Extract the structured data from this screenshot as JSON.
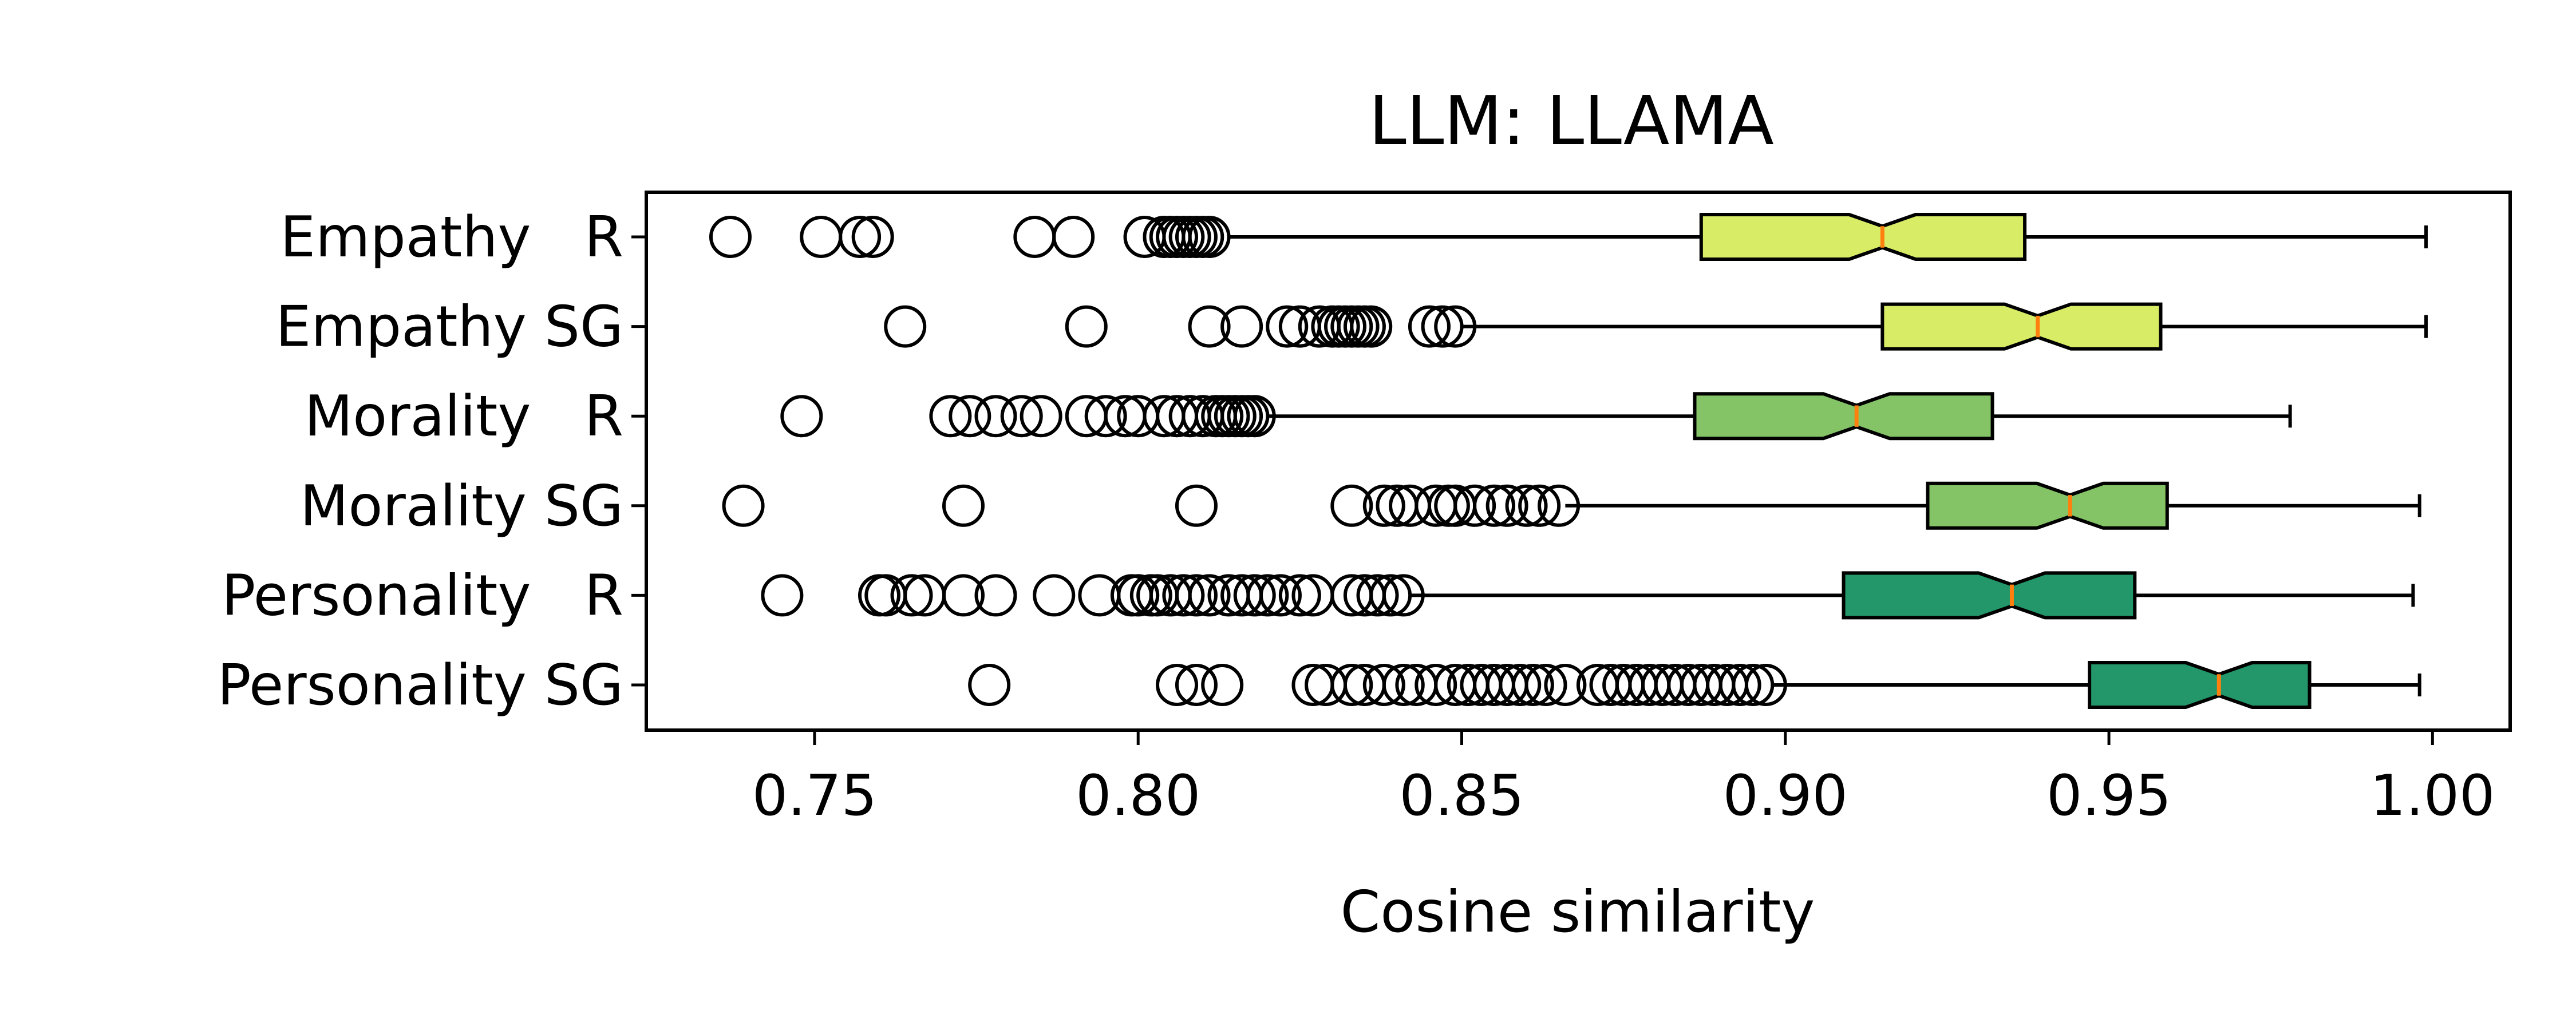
{
  "chart_data": {
    "type": "boxplot",
    "orientation": "horizontal",
    "notched": true,
    "title": "LLM: LLAMA",
    "xlabel": "Cosine similarity",
    "ylabel": "",
    "xlim": [
      0.724,
      1.012
    ],
    "xticks": [
      "0.75",
      "0.80",
      "0.85",
      "0.90",
      "0.95",
      "1.00"
    ],
    "grid": false,
    "median_color": "#ff7f0e",
    "series": [
      {
        "label": "Empathy   R",
        "color": "#d9ec66",
        "whisker_low": 0.814,
        "q1": 0.887,
        "median": 0.915,
        "q3": 0.937,
        "whisker_high": 0.999,
        "outliers": [
          0.737,
          0.751,
          0.757,
          0.759,
          0.784,
          0.79,
          0.801,
          0.804,
          0.805,
          0.806,
          0.807,
          0.808,
          0.809,
          0.81,
          0.811
        ]
      },
      {
        "label": "Empathy SG",
        "color": "#d9ec66",
        "whisker_low": 0.85,
        "q1": 0.915,
        "median": 0.939,
        "q3": 0.958,
        "whisker_high": 0.999,
        "outliers": [
          0.764,
          0.792,
          0.811,
          0.816,
          0.823,
          0.825,
          0.828,
          0.83,
          0.831,
          0.832,
          0.833,
          0.834,
          0.835,
          0.836,
          0.845,
          0.847,
          0.849
        ]
      },
      {
        "label": "Morality   R",
        "color": "#84c466",
        "whisker_low": 0.82,
        "q1": 0.886,
        "median": 0.911,
        "q3": 0.932,
        "whisker_high": 0.978,
        "outliers": [
          0.748,
          0.771,
          0.774,
          0.778,
          0.782,
          0.785,
          0.792,
          0.795,
          0.798,
          0.8,
          0.804,
          0.806,
          0.808,
          0.81,
          0.812,
          0.813,
          0.814,
          0.815,
          0.816,
          0.817,
          0.818
        ]
      },
      {
        "label": "Morality SG",
        "color": "#84c466",
        "whisker_low": 0.866,
        "q1": 0.922,
        "median": 0.944,
        "q3": 0.959,
        "whisker_high": 0.998,
        "outliers": [
          0.739,
          0.773,
          0.809,
          0.833,
          0.838,
          0.84,
          0.842,
          0.846,
          0.848,
          0.849,
          0.852,
          0.855,
          0.857,
          0.86,
          0.862,
          0.865
        ]
      },
      {
        "label": "Personality   R",
        "color": "#239769",
        "whisker_low": 0.842,
        "q1": 0.909,
        "median": 0.935,
        "q3": 0.954,
        "whisker_high": 0.997,
        "outliers": [
          0.745,
          0.76,
          0.761,
          0.765,
          0.767,
          0.773,
          0.778,
          0.787,
          0.794,
          0.799,
          0.8,
          0.802,
          0.803,
          0.805,
          0.807,
          0.809,
          0.811,
          0.814,
          0.816,
          0.818,
          0.82,
          0.822,
          0.825,
          0.827,
          0.833,
          0.835,
          0.837,
          0.839,
          0.841
        ]
      },
      {
        "label": "Personality SG",
        "color": "#239769",
        "whisker_low": 0.898,
        "q1": 0.947,
        "median": 0.967,
        "q3": 0.981,
        "whisker_high": 0.998,
        "outliers": [
          0.777,
          0.806,
          0.809,
          0.813,
          0.827,
          0.829,
          0.833,
          0.835,
          0.838,
          0.841,
          0.843,
          0.846,
          0.849,
          0.851,
          0.853,
          0.855,
          0.857,
          0.859,
          0.861,
          0.863,
          0.866,
          0.871,
          0.873,
          0.875,
          0.877,
          0.879,
          0.881,
          0.883,
          0.885,
          0.887,
          0.889,
          0.891,
          0.893,
          0.895,
          0.897
        ]
      }
    ]
  }
}
